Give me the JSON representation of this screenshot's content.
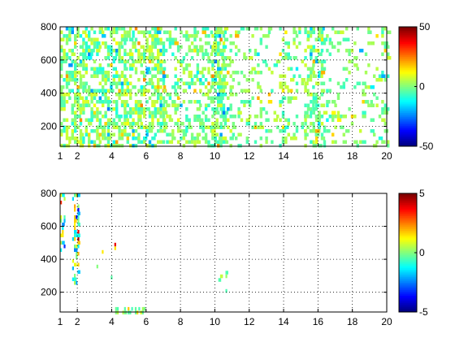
{
  "chart_data": [
    {
      "type": "heatmap",
      "xlim": [
        1,
        20
      ],
      "ylim": [
        80,
        800
      ],
      "xticks": [
        1,
        2,
        4,
        6,
        8,
        10,
        12,
        14,
        16,
        18,
        20
      ],
      "yticks": [
        200,
        400,
        600,
        800
      ],
      "grid": true,
      "colorbar": {
        "min": -50,
        "max": 50,
        "ticks": [
          -50,
          0,
          50
        ],
        "colormap": "jet",
        "placement": "right"
      },
      "regions": [
        {
          "x": [
            1,
            7
          ],
          "y": [
            80,
            800
          ],
          "density": 0.55,
          "spread": 0.16
        },
        {
          "x": [
            7,
            11
          ],
          "y": [
            80,
            800
          ],
          "density": 0.32,
          "spread": 0.14
        },
        {
          "x": [
            11,
            20
          ],
          "y": [
            80,
            800
          ],
          "density": 0.2,
          "spread": 0.13
        },
        {
          "x": [
            9.8,
            10.6
          ],
          "y": [
            80,
            800
          ],
          "density": 0.55,
          "spread": 0.16
        },
        {
          "x": [
            15.2,
            16.2
          ],
          "y": [
            80,
            800
          ],
          "density": 0.38,
          "spread": 0.14
        }
      ]
    },
    {
      "type": "heatmap",
      "xlim": [
        1,
        20
      ],
      "ylim": [
        80,
        800
      ],
      "xticks": [
        1,
        2,
        4,
        6,
        8,
        10,
        12,
        14,
        16,
        18,
        20
      ],
      "yticks": [
        200,
        400,
        600,
        800
      ],
      "grid": true,
      "colorbar": {
        "min": -5,
        "max": 5,
        "ticks": [
          -5,
          0,
          5
        ],
        "colormap": "jet",
        "placement": "right"
      },
      "regions": [
        {
          "x": [
            1,
            1.3
          ],
          "y": [
            450,
            800
          ],
          "density": 0.35,
          "spread": 0.35
        },
        {
          "x": [
            1.7,
            2.1
          ],
          "y": [
            250,
            800
          ],
          "density": 0.45,
          "spread": 0.4
        },
        {
          "x": [
            2.8,
            4.2
          ],
          "y": [
            300,
            500
          ],
          "density": 0.05,
          "spread": 0.3
        },
        {
          "x": [
            4.2,
            6
          ],
          "y": [
            80,
            110
          ],
          "density": 0.5,
          "spread": 0.12
        },
        {
          "x": [
            10.1,
            10.7
          ],
          "y": [
            200,
            330
          ],
          "density": 0.2,
          "spread": 0.12
        }
      ]
    }
  ],
  "colors": {
    "axis": "#000000",
    "grid": "#000000",
    "background": "#ffffff"
  }
}
